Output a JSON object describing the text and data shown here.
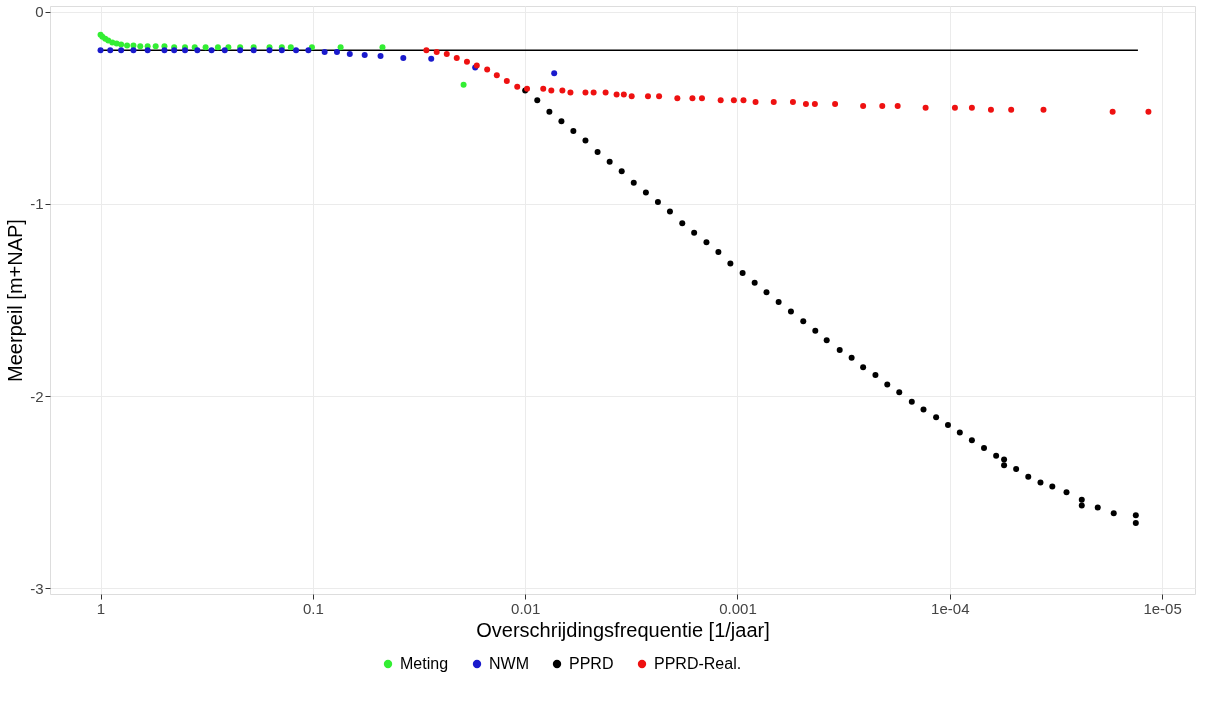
{
  "chart_data": {
    "type": "scatter",
    "xlabel": "Overschrijdingsfrequentie [1/jaar]",
    "ylabel": "Meerpeil [m+NAP]",
    "log": "x",
    "grid": true,
    "legend": "bottom",
    "marker": "circle",
    "xlim": [
      1.73,
      7e-06
    ],
    "ylim": [
      -3.03,
      0.03
    ],
    "xticks": [
      1,
      0.1,
      0.01,
      0.001,
      {
        "value": 0.0001,
        "label": "1e-04"
      },
      {
        "value": 1e-05,
        "label": "1e-05"
      }
    ],
    "yticks": [
      -3,
      -2,
      -1,
      0
    ],
    "series": [
      {
        "type": "line",
        "marker": "none",
        "color": "#000000",
        "x": [
          1,
          1.3e-05
        ],
        "values": [
          -0.2,
          -0.2
        ]
      },
      {
        "name": "Meting",
        "color": "#33ee33",
        "x": [
          1.0,
          0.98,
          0.95,
          0.92,
          0.88,
          0.84,
          0.8,
          0.75,
          0.7,
          0.65,
          0.6,
          0.55,
          0.5,
          0.45,
          0.4,
          0.36,
          0.32,
          0.28,
          0.25,
          0.22,
          0.19,
          0.16,
          0.14,
          0.127,
          0.101,
          0.074,
          0.047,
          0.0195
        ],
        "values": [
          -0.12,
          -0.13,
          -0.14,
          -0.15,
          -0.16,
          -0.165,
          -0.17,
          -0.175,
          -0.175,
          -0.18,
          -0.18,
          -0.18,
          -0.18,
          -0.185,
          -0.185,
          -0.185,
          -0.185,
          -0.185,
          -0.185,
          -0.185,
          -0.185,
          -0.185,
          -0.185,
          -0.185,
          -0.185,
          -0.185,
          -0.185,
          -0.38
        ]
      },
      {
        "name": "NWM",
        "color": "#1a1acc",
        "x": [
          1.0,
          0.9,
          0.8,
          0.7,
          0.6,
          0.5,
          0.45,
          0.4,
          0.35,
          0.3,
          0.26,
          0.22,
          0.19,
          0.16,
          0.14,
          0.12,
          0.105,
          0.088,
          0.077,
          0.067,
          0.057,
          0.048,
          0.0375,
          0.0277,
          0.0172,
          0.0073
        ],
        "values": [
          -0.2,
          -0.2,
          -0.2,
          -0.2,
          -0.2,
          -0.2,
          -0.2,
          -0.2,
          -0.2,
          -0.2,
          -0.2,
          -0.2,
          -0.2,
          -0.2,
          -0.2,
          -0.2,
          -0.2,
          -0.21,
          -0.21,
          -0.22,
          -0.225,
          -0.23,
          -0.24,
          -0.245,
          -0.29,
          -0.32
        ]
      },
      {
        "name": "PPRD",
        "color": "#000000",
        "x": [
          0.01,
          0.00877,
          0.00769,
          0.00675,
          0.00593,
          0.0052,
          0.00456,
          0.004,
          0.00351,
          0.00308,
          0.0027,
          0.00237,
          0.00208,
          0.00182,
          0.0016,
          0.0014,
          0.00123,
          0.00108,
          0.000946,
          0.00083,
          0.00073,
          0.00064,
          0.00056,
          0.00049,
          0.00043,
          0.00038,
          0.00033,
          0.00029,
          0.000256,
          0.000224,
          0.000197,
          0.000173,
          0.000151,
          0.000133,
          0.000116,
          0.000102,
          8.97e-05,
          7.87e-05,
          6.9e-05,
          6.05e-05,
          5.55e-05,
          5.55e-05,
          4.87e-05,
          4.27e-05,
          3.74e-05,
          3.29e-05,
          2.82e-05,
          2.39e-05,
          2.39e-05,
          2.01e-05,
          1.69e-05,
          1.33e-05,
          1.33e-05
        ],
        "values": [
          -0.41,
          -0.46,
          -0.52,
          -0.57,
          -0.62,
          -0.67,
          -0.73,
          -0.78,
          -0.83,
          -0.89,
          -0.94,
          -0.99,
          -1.04,
          -1.1,
          -1.15,
          -1.2,
          -1.25,
          -1.31,
          -1.36,
          -1.41,
          -1.46,
          -1.51,
          -1.56,
          -1.61,
          -1.66,
          -1.71,
          -1.76,
          -1.8,
          -1.85,
          -1.89,
          -1.94,
          -1.98,
          -2.03,
          -2.07,
          -2.11,
          -2.15,
          -2.19,
          -2.23,
          -2.27,
          -2.31,
          -2.33,
          -2.36,
          -2.38,
          -2.42,
          -2.45,
          -2.47,
          -2.5,
          -2.54,
          -2.57,
          -2.58,
          -2.61,
          -2.62,
          -2.66
        ]
      },
      {
        "name": "PPRD-Real.",
        "color": "#ee1111",
        "x": [
          0.0292,
          0.0261,
          0.0234,
          0.021,
          0.0188,
          0.0169,
          0.0151,
          0.0136,
          0.0122,
          0.0109,
          0.0098,
          0.00822,
          0.00753,
          0.00668,
          0.00612,
          0.0052,
          0.00476,
          0.00418,
          0.00371,
          0.00343,
          0.00315,
          0.00264,
          0.00234,
          0.00192,
          0.00163,
          0.00147,
          0.0012,
          0.00104,
          0.000937,
          0.000822,
          0.000675,
          0.000548,
          0.000476,
          0.000432,
          0.000347,
          0.000256,
          0.000208,
          0.000176,
          0.00013,
          9.46e-05,
          7.87e-05,
          6.4e-05,
          5.14e-05,
          3.62e-05,
          1.71e-05,
          1.16e-05
        ],
        "values": [
          -0.2,
          -0.21,
          -0.22,
          -0.24,
          -0.26,
          -0.28,
          -0.3,
          -0.33,
          -0.36,
          -0.39,
          -0.4,
          -0.4,
          -0.41,
          -0.41,
          -0.42,
          -0.42,
          -0.42,
          -0.42,
          -0.43,
          -0.43,
          -0.44,
          -0.44,
          -0.44,
          -0.45,
          -0.45,
          -0.45,
          -0.46,
          -0.46,
          -0.46,
          -0.47,
          -0.47,
          -0.47,
          -0.48,
          -0.48,
          -0.48,
          -0.49,
          -0.49,
          -0.49,
          -0.5,
          -0.5,
          -0.5,
          -0.51,
          -0.51,
          -0.51,
          -0.52,
          -0.52
        ]
      }
    ]
  }
}
